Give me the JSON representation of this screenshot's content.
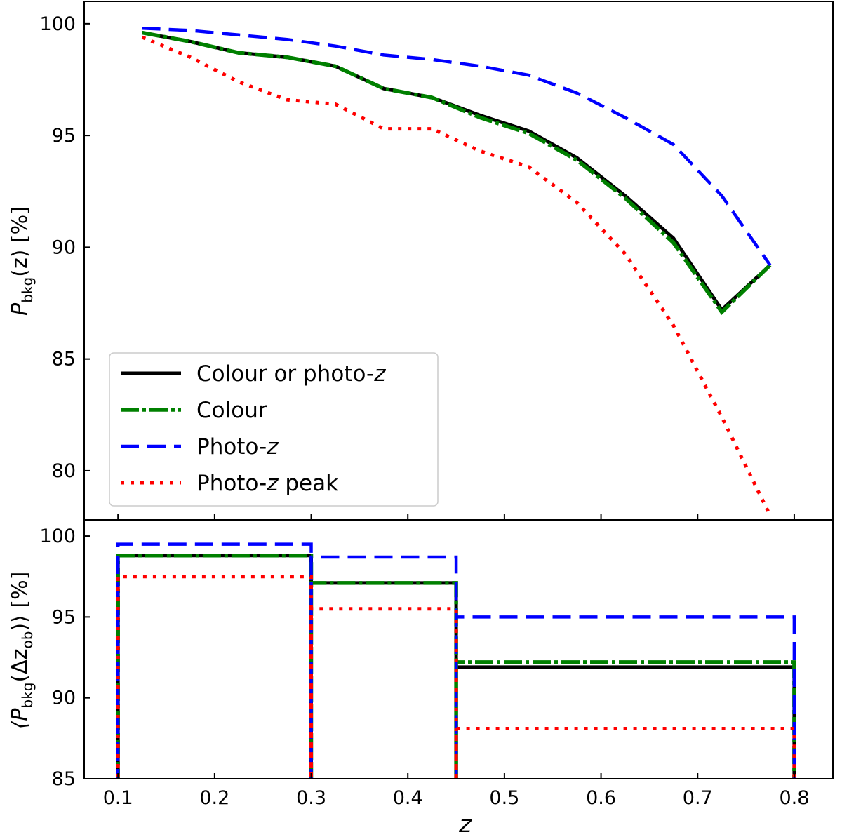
{
  "chart_data": [
    {
      "type": "line",
      "panel": "top",
      "x": [
        0.125,
        0.175,
        0.225,
        0.275,
        0.325,
        0.375,
        0.425,
        0.475,
        0.525,
        0.575,
        0.625,
        0.675,
        0.725,
        0.775
      ],
      "series": [
        {
          "name": "Colour or photo-z",
          "legend_main": "Colour or photo-",
          "legend_italic": "z",
          "legend_rest": "",
          "color": "#000000",
          "style": "solid",
          "values": [
            99.6,
            99.2,
            98.7,
            98.5,
            98.1,
            97.1,
            96.7,
            95.9,
            95.2,
            94.0,
            92.3,
            90.4,
            87.2,
            89.2
          ]
        },
        {
          "name": "Colour",
          "legend_main": "Colour",
          "legend_italic": "",
          "legend_rest": "",
          "color": "#008000",
          "style": "dashdot",
          "values": [
            99.6,
            99.2,
            98.7,
            98.5,
            98.1,
            97.1,
            96.7,
            95.8,
            95.1,
            93.9,
            92.2,
            90.2,
            87.1,
            89.2
          ]
        },
        {
          "name": "Photo-z",
          "legend_main": "Photo-",
          "legend_italic": "z",
          "legend_rest": "",
          "color": "#0000ff",
          "style": "dashed",
          "values": [
            99.8,
            99.7,
            99.5,
            99.3,
            99.0,
            98.6,
            98.4,
            98.1,
            97.7,
            96.9,
            95.8,
            94.6,
            92.3,
            89.2
          ]
        },
        {
          "name": "Photo-z peak",
          "legend_main": "Photo-",
          "legend_italic": "z",
          "legend_rest": " peak",
          "color": "#ff0000",
          "style": "dotted",
          "values": [
            99.4,
            98.5,
            97.4,
            96.6,
            96.4,
            95.3,
            95.3,
            94.3,
            93.6,
            92.0,
            89.7,
            86.5,
            82.4,
            78.0
          ]
        }
      ],
      "ylabel_main": "P",
      "ylabel_sub": "bkg",
      "ylabel_rest": "(z) [%]",
      "xlim": [
        0.065,
        0.84
      ],
      "ylim": [
        77.8,
        101.0
      ],
      "yticks": [
        80,
        85,
        90,
        95,
        100
      ],
      "legend_position": "lower-left"
    },
    {
      "type": "step",
      "panel": "bottom",
      "bin_edges": [
        0.1,
        0.3,
        0.45,
        0.8
      ],
      "series": [
        {
          "name": "Colour or photo-z",
          "color": "#000000",
          "style": "solid",
          "values": [
            98.8,
            97.1,
            91.9
          ]
        },
        {
          "name": "Colour",
          "color": "#008000",
          "style": "dashdot",
          "values": [
            98.8,
            97.1,
            92.2
          ]
        },
        {
          "name": "Photo-z",
          "color": "#0000ff",
          "style": "dashed",
          "values": [
            99.5,
            98.7,
            95.0
          ]
        },
        {
          "name": "Photo-z peak",
          "color": "#ff0000",
          "style": "dotted",
          "values": [
            97.5,
            95.5,
            88.1
          ]
        }
      ],
      "xlabel": "z",
      "ylabel_main": "⟨P",
      "ylabel_sub": "bkg",
      "ylabel_mid": "(Δz",
      "ylabel_sub2": "ob",
      "ylabel_rest": ")⟩ [%]",
      "xlim": [
        0.065,
        0.84
      ],
      "ylim": [
        85,
        101
      ],
      "xticks": [
        0.1,
        0.2,
        0.3,
        0.4,
        0.5,
        0.6,
        0.7,
        0.8
      ],
      "xtick_labels": [
        "0.1",
        "0.2",
        "0.3",
        "0.4",
        "0.5",
        "0.6",
        "0.7",
        "0.8"
      ],
      "yticks": [
        85,
        90,
        95,
        100
      ]
    }
  ]
}
